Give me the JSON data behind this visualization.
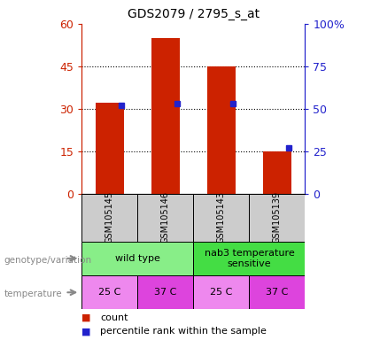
{
  "title": "GDS2079 / 2795_s_at",
  "samples": [
    "GSM105145",
    "GSM105146",
    "GSM105143",
    "GSM105139"
  ],
  "counts": [
    32,
    55,
    45,
    15
  ],
  "percentiles": [
    52,
    53,
    53,
    27
  ],
  "left_ylim": [
    0,
    60
  ],
  "right_ylim": [
    0,
    100
  ],
  "left_yticks": [
    0,
    15,
    30,
    45,
    60
  ],
  "right_yticks": [
    0,
    25,
    50,
    75,
    100
  ],
  "right_yticklabels": [
    "0",
    "25",
    "50",
    "75",
    "100%"
  ],
  "bar_color": "#cc2200",
  "percentile_color": "#2222cc",
  "genotype_groups": [
    {
      "label": "wild type",
      "cols": [
        0,
        1
      ],
      "color": "#88ee88"
    },
    {
      "label": "nab3 temperature\nsensitive",
      "cols": [
        2,
        3
      ],
      "color": "#44dd44"
    }
  ],
  "temperature_row": [
    "25 C",
    "37 C",
    "25 C",
    "37 C"
  ],
  "temp_colors": [
    "#ee88ee",
    "#dd44dd",
    "#ee88ee",
    "#dd44dd"
  ],
  "sample_bg_color": "#cccccc",
  "left_axis_color": "#cc2200",
  "right_axis_color": "#2222cc",
  "bar_width": 0.5,
  "x_positions": [
    0,
    1,
    2,
    3
  ]
}
